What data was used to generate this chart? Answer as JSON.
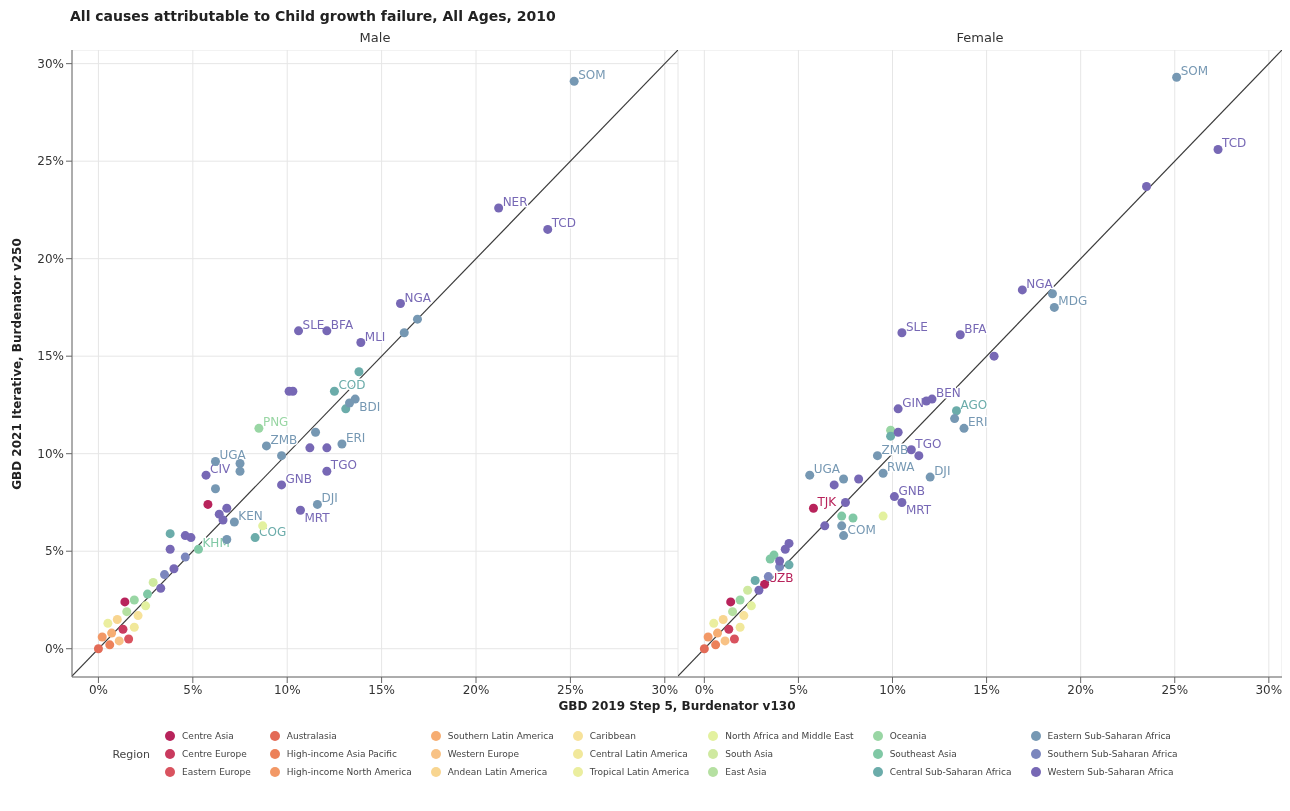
{
  "chart_data": [
    {
      "type": "scatter",
      "title": "All causes attributable to Child growth failure, All Ages, 2010",
      "subtitle": "Male",
      "xlabel": "GBD 2019 Step 5, Burdenator v130",
      "ylabel": "GBD 2021 Iterative, Burdenator v250",
      "legend_title": "Region",
      "legend": "bottom",
      "grid": true,
      "marker": "circle",
      "xlim": [
        -1.4,
        30.7
      ],
      "ylim": [
        -1.45,
        30.7
      ],
      "xticks": [
        {
          "value": 0,
          "label": "0%"
        },
        {
          "value": 5,
          "label": "5%"
        },
        {
          "value": 10,
          "label": "10%"
        },
        {
          "value": 15,
          "label": "15%"
        },
        {
          "value": 20,
          "label": "20%"
        },
        {
          "value": 25,
          "label": "25%"
        },
        {
          "value": 30,
          "label": "30%"
        }
      ],
      "yticks": [
        {
          "value": 0,
          "label": "0%"
        },
        {
          "value": 5,
          "label": "5%"
        },
        {
          "value": 10,
          "label": "10%"
        },
        {
          "value": 15,
          "label": "15%"
        },
        {
          "value": 20,
          "label": "20%"
        },
        {
          "value": 25,
          "label": "25%"
        },
        {
          "value": 30,
          "label": "30%"
        }
      ],
      "series": [
        {
          "name": "Centre Asia",
          "color": "#b8235b",
          "x": [
            5.8,
            1.4
          ],
          "values": [
            7.4,
            2.4
          ]
        },
        {
          "name": "Centre Europe",
          "color": "#c93a5e",
          "x": [
            1.3
          ],
          "values": [
            1.0
          ]
        },
        {
          "name": "Eastern Europe",
          "color": "#d9535f",
          "x": [
            1.6
          ],
          "values": [
            0.5
          ]
        },
        {
          "name": "Australasia",
          "color": "#e36b57",
          "x": [
            0.0
          ],
          "values": [
            0.0
          ]
        },
        {
          "name": "High-income Asia Pacific",
          "color": "#ec8159",
          "x": [
            0.6
          ],
          "values": [
            0.2
          ]
        },
        {
          "name": "High-income North America",
          "color": "#f29866",
          "x": [
            0.2
          ],
          "values": [
            0.6
          ]
        },
        {
          "name": "Southern Latin America",
          "color": "#f6ad72",
          "x": [
            0.7
          ],
          "values": [
            0.8
          ]
        },
        {
          "name": "Western Europe",
          "color": "#f8c285",
          "x": [
            1.1
          ],
          "values": [
            0.4
          ]
        },
        {
          "name": "Andean Latin America",
          "color": "#f8d590",
          "x": [
            1.0
          ],
          "values": [
            1.5
          ]
        },
        {
          "name": "Caribbean",
          "color": "#f7e29a",
          "x": [
            2.1
          ],
          "values": [
            1.7
          ]
        },
        {
          "name": "Central Latin America",
          "color": "#f1e89b",
          "x": [
            1.9
          ],
          "values": [
            1.1
          ]
        },
        {
          "name": "Tropical Latin America",
          "color": "#ebee9f",
          "x": [
            0.5
          ],
          "values": [
            1.3
          ]
        },
        {
          "name": "North Africa and Middle East",
          "color": "#e3f19f",
          "x": [
            8.7,
            2.5
          ],
          "values": [
            6.3,
            2.2
          ]
        },
        {
          "name": "South Asia",
          "color": "#cfe9a0",
          "x": [
            2.9
          ],
          "values": [
            3.4
          ]
        },
        {
          "name": "East Asia",
          "color": "#b5e0a1",
          "x": [
            1.5
          ],
          "values": [
            1.9
          ]
        },
        {
          "name": "Oceania",
          "color": "#99d6a4",
          "x": [
            8.5,
            1.9
          ],
          "values": [
            11.3,
            2.5
          ]
        },
        {
          "name": "Southeast Asia",
          "color": "#80c8a5",
          "x": [
            5.3,
            2.6
          ],
          "values": [
            5.1,
            2.8
          ]
        },
        {
          "name": "Central Sub-Saharan Africa",
          "color": "#6bacaa",
          "x": [
            13.8,
            12.5,
            13.1,
            3.8,
            8.3
          ],
          "values": [
            14.2,
            13.2,
            12.3,
            5.9,
            5.7
          ]
        },
        {
          "name": "Eastern Sub-Saharan Africa",
          "color": "#7698b3",
          "x": [
            25.2,
            16.9,
            16.2,
            13.6,
            13.3,
            11.5,
            8.9,
            12.9,
            9.7,
            6.2,
            7.5,
            7.5,
            6.2,
            11.6,
            7.2,
            6.8
          ],
          "values": [
            29.1,
            16.9,
            16.2,
            12.8,
            12.6,
            11.1,
            10.4,
            10.5,
            9.9,
            9.6,
            9.5,
            9.1,
            8.2,
            7.4,
            6.5,
            5.6
          ]
        },
        {
          "name": "Southern Sub-Saharan Africa",
          "color": "#7b86bd",
          "x": [
            3.5,
            4.6
          ],
          "values": [
            3.8,
            4.7
          ]
        },
        {
          "name": "Western Sub-Saharan Africa",
          "color": "#7768b5",
          "x": [
            21.2,
            23.8,
            16.0,
            10.6,
            12.1,
            13.9,
            10.1,
            10.3,
            11.2,
            12.1,
            12.1,
            5.7,
            9.7,
            6.8,
            6.4,
            6.6,
            10.7,
            4.6,
            4.9,
            3.8,
            4.0,
            3.3
          ],
          "values": [
            22.6,
            21.5,
            17.7,
            16.3,
            16.3,
            15.7,
            13.2,
            13.2,
            10.3,
            10.3,
            9.1,
            8.9,
            8.4,
            7.2,
            6.9,
            6.6,
            7.1,
            5.8,
            5.7,
            5.1,
            4.1,
            3.1
          ]
        },
        {
          "type": "line",
          "color": "#3a3a3a",
          "marker": "none",
          "x": [
            -1.4,
            30.7
          ],
          "values": [
            -1.4,
            30.7
          ]
        }
      ],
      "annotations": [
        {
          "text": "SOM",
          "x": 25.2,
          "y": 29.1
        },
        {
          "text": "NER",
          "x": 21.2,
          "y": 22.6
        },
        {
          "text": "TCD",
          "x": 23.8,
          "y": 21.5
        },
        {
          "text": "NGA",
          "x": 16.0,
          "y": 17.7
        },
        {
          "text": "SLE",
          "x": 10.6,
          "y": 16.3
        },
        {
          "text": "BFA",
          "x": 12.1,
          "y": 16.3
        },
        {
          "text": "MLI",
          "x": 13.9,
          "y": 15.7
        },
        {
          "text": "COD",
          "x": 12.5,
          "y": 13.2
        },
        {
          "text": "BDI",
          "x": 13.6,
          "y": 12.8
        },
        {
          "text": "PNG",
          "x": 8.5,
          "y": 11.3
        },
        {
          "text": "ZMB",
          "x": 8.9,
          "y": 10.4
        },
        {
          "text": "ERI",
          "x": 12.9,
          "y": 10.5
        },
        {
          "text": "TGO",
          "x": 12.1,
          "y": 9.1
        },
        {
          "text": "UGA",
          "x": 6.2,
          "y": 9.6
        },
        {
          "text": "CIV",
          "x": 5.7,
          "y": 8.9
        },
        {
          "text": "GNB",
          "x": 9.7,
          "y": 8.4
        },
        {
          "text": "DJI",
          "x": 11.6,
          "y": 7.4
        },
        {
          "text": "MRT",
          "x": 10.7,
          "y": 7.1
        },
        {
          "text": "KEN",
          "x": 7.2,
          "y": 6.5
        },
        {
          "text": "COG",
          "x": 8.3,
          "y": 5.7
        },
        {
          "text": "KHM",
          "x": 5.3,
          "y": 5.1
        }
      ]
    },
    {
      "type": "scatter",
      "subtitle": "Female",
      "grid": true,
      "marker": "circle",
      "tick_labels": "x",
      "xlim": [
        -1.4,
        30.7
      ],
      "ylim": [
        -1.45,
        30.7
      ],
      "xticks": [
        {
          "value": 0,
          "label": "0%"
        },
        {
          "value": 5,
          "label": "5%"
        },
        {
          "value": 10,
          "label": "10%"
        },
        {
          "value": 15,
          "label": "15%"
        },
        {
          "value": 20,
          "label": "20%"
        },
        {
          "value": 25,
          "label": "25%"
        },
        {
          "value": 30,
          "label": "30%"
        }
      ],
      "yticks": [
        {
          "value": 0,
          "label": null
        },
        {
          "value": 5,
          "label": null
        },
        {
          "value": 10,
          "label": null
        },
        {
          "value": 15,
          "label": null
        },
        {
          "value": 20,
          "label": null
        },
        {
          "value": 25,
          "label": null
        },
        {
          "value": 30,
          "label": null
        }
      ],
      "series": [
        {
          "name": "Centre Asia",
          "color": "#b8235b",
          "x": [
            5.8,
            3.2,
            1.4
          ],
          "values": [
            7.2,
            3.3,
            2.4
          ]
        },
        {
          "name": "Centre Europe",
          "color": "#c93a5e",
          "x": [
            1.3
          ],
          "values": [
            1.0
          ]
        },
        {
          "name": "Eastern Europe",
          "color": "#d9535f",
          "x": [
            1.6
          ],
          "values": [
            0.5
          ]
        },
        {
          "name": "Australasia",
          "color": "#e36b57",
          "x": [
            0.0
          ],
          "values": [
            0.0
          ]
        },
        {
          "name": "High-income Asia Pacific",
          "color": "#ec8159",
          "x": [
            0.6
          ],
          "values": [
            0.2
          ]
        },
        {
          "name": "High-income North America",
          "color": "#f29866",
          "x": [
            0.2
          ],
          "values": [
            0.6
          ]
        },
        {
          "name": "Southern Latin America",
          "color": "#f6ad72",
          "x": [
            0.7
          ],
          "values": [
            0.8
          ]
        },
        {
          "name": "Western Europe",
          "color": "#f8c285",
          "x": [
            1.1
          ],
          "values": [
            0.4
          ]
        },
        {
          "name": "Andean Latin America",
          "color": "#f8d590",
          "x": [
            1.0
          ],
          "values": [
            1.5
          ]
        },
        {
          "name": "Caribbean",
          "color": "#f7e29a",
          "x": [
            2.1
          ],
          "values": [
            1.7
          ]
        },
        {
          "name": "Central Latin America",
          "color": "#f1e89b",
          "x": [
            1.9
          ],
          "values": [
            1.1
          ]
        },
        {
          "name": "Tropical Latin America",
          "color": "#ebee9f",
          "x": [
            0.5
          ],
          "values": [
            1.3
          ]
        },
        {
          "name": "North Africa and Middle East",
          "color": "#e3f19f",
          "x": [
            9.5,
            2.5
          ],
          "values": [
            6.8,
            2.2
          ]
        },
        {
          "name": "South Asia",
          "color": "#cfe9a0",
          "x": [
            2.3
          ],
          "values": [
            3.0
          ]
        },
        {
          "name": "East Asia",
          "color": "#b5e0a1",
          "x": [
            1.5
          ],
          "values": [
            1.9
          ]
        },
        {
          "name": "Oceania",
          "color": "#99d6a4",
          "x": [
            9.9,
            1.9
          ],
          "values": [
            11.2,
            2.5
          ]
        },
        {
          "name": "Southeast Asia",
          "color": "#80c8a5",
          "x": [
            7.3,
            7.9,
            3.5,
            3.7
          ],
          "values": [
            6.8,
            6.7,
            4.6,
            4.8
          ]
        },
        {
          "name": "Central Sub-Saharan Africa",
          "color": "#6bacaa",
          "x": [
            13.4,
            9.9,
            2.7,
            4.5
          ],
          "values": [
            12.2,
            10.9,
            3.5,
            4.3
          ]
        },
        {
          "name": "Eastern Sub-Saharan Africa",
          "color": "#7698b3",
          "x": [
            25.1,
            18.5,
            18.6,
            13.3,
            13.8,
            9.2,
            5.6,
            7.4,
            9.5,
            12.0,
            7.3,
            7.4
          ],
          "values": [
            29.3,
            18.2,
            17.5,
            11.8,
            11.3,
            9.9,
            8.9,
            8.7,
            9.0,
            8.8,
            6.3,
            5.8
          ]
        },
        {
          "name": "Southern Sub-Saharan Africa",
          "color": "#7b86bd",
          "x": [
            3.4,
            4.0
          ],
          "values": [
            3.7,
            4.2
          ]
        },
        {
          "name": "Western Sub-Saharan Africa",
          "color": "#7768b5",
          "x": [
            27.3,
            23.5,
            16.9,
            10.5,
            13.6,
            15.4,
            10.3,
            11.8,
            12.1,
            10.3,
            11.0,
            11.4,
            6.9,
            8.2,
            10.1,
            10.5,
            7.5,
            6.4,
            4.5,
            4.3,
            4.0,
            2.9
          ],
          "values": [
            25.6,
            23.7,
            18.4,
            16.2,
            16.1,
            15.0,
            12.3,
            12.7,
            12.8,
            11.1,
            10.2,
            9.9,
            8.4,
            8.7,
            7.8,
            7.5,
            7.5,
            6.3,
            5.4,
            5.1,
            4.5,
            3.0
          ]
        },
        {
          "type": "line",
          "color": "#3a3a3a",
          "marker": "none",
          "x": [
            -1.4,
            30.7
          ],
          "values": [
            -1.4,
            30.7
          ]
        }
      ],
      "annotations": [
        {
          "text": "SOM",
          "x": 25.1,
          "y": 29.3
        },
        {
          "text": "TCD",
          "x": 27.3,
          "y": 25.6
        },
        {
          "text": "NGA",
          "x": 16.9,
          "y": 18.4
        },
        {
          "text": "MDG",
          "x": 18.6,
          "y": 17.5
        },
        {
          "text": "SLE",
          "x": 10.5,
          "y": 16.2
        },
        {
          "text": "BFA",
          "x": 13.6,
          "y": 16.1
        },
        {
          "text": "GIN",
          "x": 10.3,
          "y": 12.3
        },
        {
          "text": "BEN",
          "x": 12.1,
          "y": 12.8
        },
        {
          "text": "AGO",
          "x": 13.4,
          "y": 12.2
        },
        {
          "text": "ERI",
          "x": 13.8,
          "y": 11.3
        },
        {
          "text": "TGO",
          "x": 11.0,
          "y": 10.2
        },
        {
          "text": "ZMB",
          "x": 9.2,
          "y": 9.9
        },
        {
          "text": "UGA",
          "x": 5.6,
          "y": 8.9
        },
        {
          "text": "RWA",
          "x": 9.5,
          "y": 9.0
        },
        {
          "text": "DJI",
          "x": 12.0,
          "y": 8.8
        },
        {
          "text": "GNB",
          "x": 10.1,
          "y": 7.8
        },
        {
          "text": "MRT",
          "x": 10.5,
          "y": 7.5
        },
        {
          "text": "TJK",
          "x": 5.8,
          "y": 7.2
        },
        {
          "text": "COM",
          "x": 7.4,
          "y": 5.8
        },
        {
          "text": "UZB",
          "x": 3.2,
          "y": 3.3
        }
      ]
    }
  ]
}
